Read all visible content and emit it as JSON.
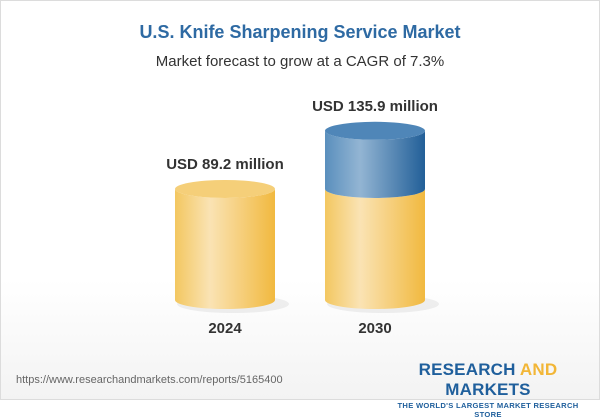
{
  "title": "U.S. Knife Sharpening Service Market",
  "subtitle": "Market forecast to grow at a CAGR of 7.3%",
  "chart_data": {
    "type": "bar",
    "style": "3d-cylinder",
    "categories": [
      "2024",
      "2030"
    ],
    "values": [
      89.2,
      135.9
    ],
    "data_labels": [
      "USD 89.2 million",
      "USD 135.9 million"
    ],
    "unit": "USD million",
    "colors": {
      "base": "#f2c25a",
      "growth": "#2f6ea3"
    }
  },
  "footer": {
    "url": "https://www.researchandmarkets.com/reports/5165400",
    "logo_part1": "RESEARCH ",
    "logo_part2": "AND",
    "logo_part3": " MARKETS",
    "logo_tagline": "THE WORLD'S LARGEST MARKET RESEARCH STORE"
  }
}
